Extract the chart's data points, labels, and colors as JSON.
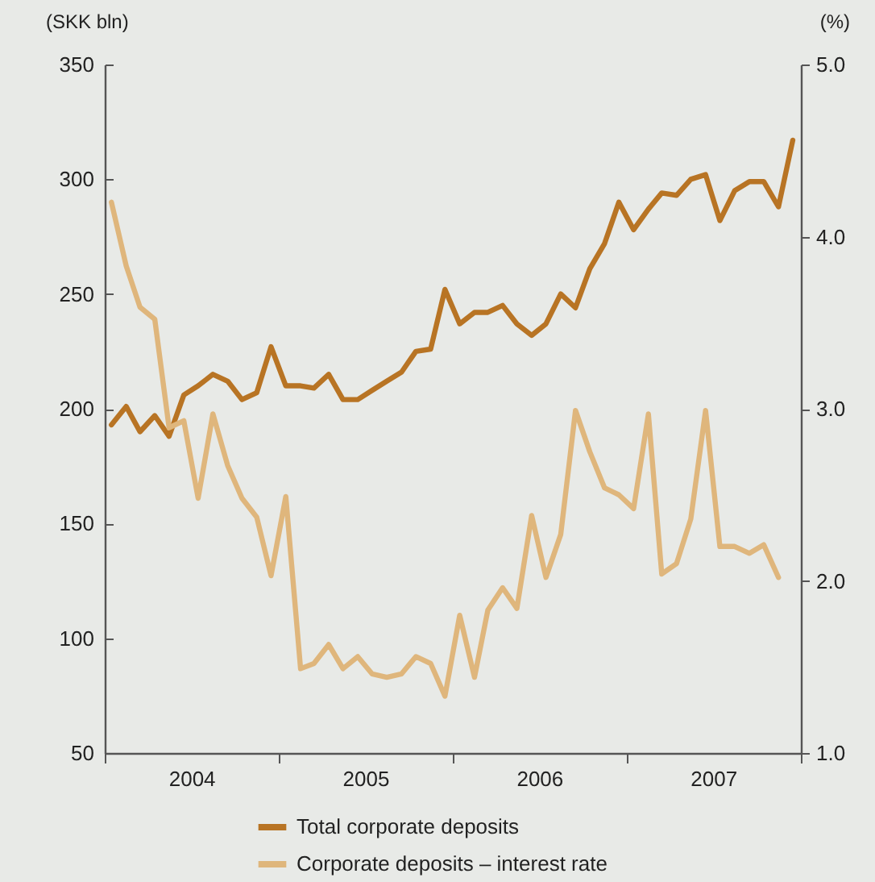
{
  "chart_data": {
    "type": "line",
    "ylabel": "(SKK bln)",
    "y2label": "(%)",
    "x": [
      "2004-01-15",
      "2004-02-15",
      "2004-03-15",
      "2004-04-15",
      "2004-05-15",
      "2004-06-15",
      "2004-07-15",
      "2004-08-15",
      "2004-09-15",
      "2004-10-15",
      "2004-11-15",
      "2004-12-15",
      "2005-01-15",
      "2005-02-15",
      "2005-03-15",
      "2005-04-15",
      "2005-05-15",
      "2005-06-15",
      "2005-07-15",
      "2005-08-15",
      "2005-09-15",
      "2005-10-15",
      "2005-11-15",
      "2005-12-15",
      "2006-01-15",
      "2006-02-15",
      "2006-03-15",
      "2006-04-15",
      "2006-05-15",
      "2006-06-15",
      "2006-07-15",
      "2006-08-15",
      "2006-09-15",
      "2006-10-15",
      "2006-11-15",
      "2006-12-15",
      "2007-01-15",
      "2007-02-15",
      "2007-03-15",
      "2007-04-15",
      "2007-05-15",
      "2007-06-15",
      "2007-07-15",
      "2007-08-15",
      "2007-09-15",
      "2007-10-15",
      "2007-11-15",
      "2007-12-15"
    ],
    "series": [
      {
        "name": "Total corporate deposits",
        "color": "#b87424",
        "values": [
          193,
          201,
          190,
          197,
          188,
          206,
          210,
          215,
          212,
          204,
          207,
          227,
          210,
          210,
          209,
          215,
          204,
          204,
          208,
          212,
          216,
          225,
          226,
          252,
          237,
          242,
          242,
          245,
          237,
          232,
          237,
          250,
          244,
          261,
          272,
          290,
          278,
          287,
          294,
          293,
          300,
          302,
          282,
          295,
          299,
          299,
          288,
          317
        ]
      },
      {
        "name": "Corporate deposits – interest rate",
        "color": "#dfb67c",
        "axis": "y2",
        "values": [
          4.2,
          3.83,
          3.59,
          3.52,
          2.89,
          2.93,
          2.48,
          2.97,
          2.67,
          2.48,
          2.37,
          2.03,
          2.49,
          1.49,
          1.52,
          1.63,
          1.49,
          1.56,
          1.46,
          1.44,
          1.46,
          1.56,
          1.52,
          1.33,
          1.8,
          1.44,
          1.83,
          1.96,
          1.84,
          2.38,
          2.02,
          2.27,
          2.99,
          2.75,
          2.54,
          2.5,
          2.42,
          2.97,
          2.04,
          2.1,
          2.36,
          2.99,
          2.2,
          2.2,
          2.16,
          2.21,
          2.02,
          null
        ]
      }
    ],
    "xlim": [
      "2004-01-01",
      "2008-01-01"
    ],
    "xticks": [
      {
        "value": "2004-01-01",
        "label": null
      },
      {
        "value": "2004-07-01",
        "label": "2004"
      },
      {
        "value": "2005-01-01",
        "label": null
      },
      {
        "value": "2005-07-01",
        "label": "2005"
      },
      {
        "value": "2006-01-01",
        "label": null
      },
      {
        "value": "2006-07-01",
        "label": "2006"
      },
      {
        "value": "2007-01-01",
        "label": null
      },
      {
        "value": "2007-07-01",
        "label": "2007"
      },
      {
        "value": "2008-01-01",
        "label": null
      }
    ],
    "ylim": [
      50,
      350
    ],
    "yticks": [
      50,
      100,
      150,
      200,
      250,
      300,
      350
    ],
    "y2lim": [
      1,
      5
    ],
    "y2ticks": [
      {
        "value": 1,
        "label": "1.0"
      },
      {
        "value": 2,
        "label": "2.0"
      },
      {
        "value": 3,
        "label": "3.0"
      },
      {
        "value": 4,
        "label": "4.0"
      },
      {
        "value": 5,
        "label": "5.0"
      }
    ],
    "legend": "bottom",
    "grid": false,
    "marker": "none",
    "line_style": "solid"
  }
}
